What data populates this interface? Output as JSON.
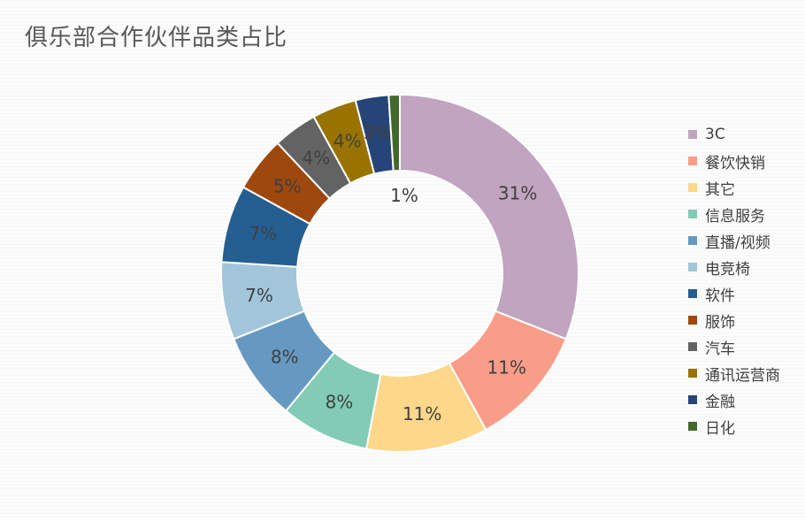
{
  "chart_data": {
    "type": "pie",
    "title": "俱乐部合作伙伴品类占比",
    "legend_position": "right",
    "series": [
      {
        "label": "3C",
        "value": 31,
        "label_text": "31%",
        "color": "#c0a4c0"
      },
      {
        "label": "餐饮快销",
        "value": 11,
        "label_text": "11%",
        "color": "#fa9d88"
      },
      {
        "label": "其它",
        "value": 11,
        "label_text": "11%",
        "color": "#fdd78a"
      },
      {
        "label": "信息服务",
        "value": 8,
        "label_text": "8%",
        "color": "#82cbb5"
      },
      {
        "label": "直播/视频",
        "value": 8,
        "label_text": "8%",
        "color": "#6699c2"
      },
      {
        "label": "电竞椅",
        "value": 7,
        "label_text": "7%",
        "color": "#a2c5da"
      },
      {
        "label": "软件",
        "value": 7,
        "label_text": "7%",
        "color": "#255e91"
      },
      {
        "label": "服饰",
        "value": 5,
        "label_text": "5%",
        "color": "#9e480e"
      },
      {
        "label": "汽车",
        "value": 4,
        "label_text": "4%",
        "color": "#636363"
      },
      {
        "label": "通讯运营商",
        "value": 4,
        "label_text": "4%",
        "color": "#997300"
      },
      {
        "label": "金融",
        "value": 3,
        "label_text": "3%",
        "color": "#264478"
      },
      {
        "label": "日化",
        "value": 1,
        "label_text": "1%",
        "color": "#43682b"
      }
    ]
  }
}
